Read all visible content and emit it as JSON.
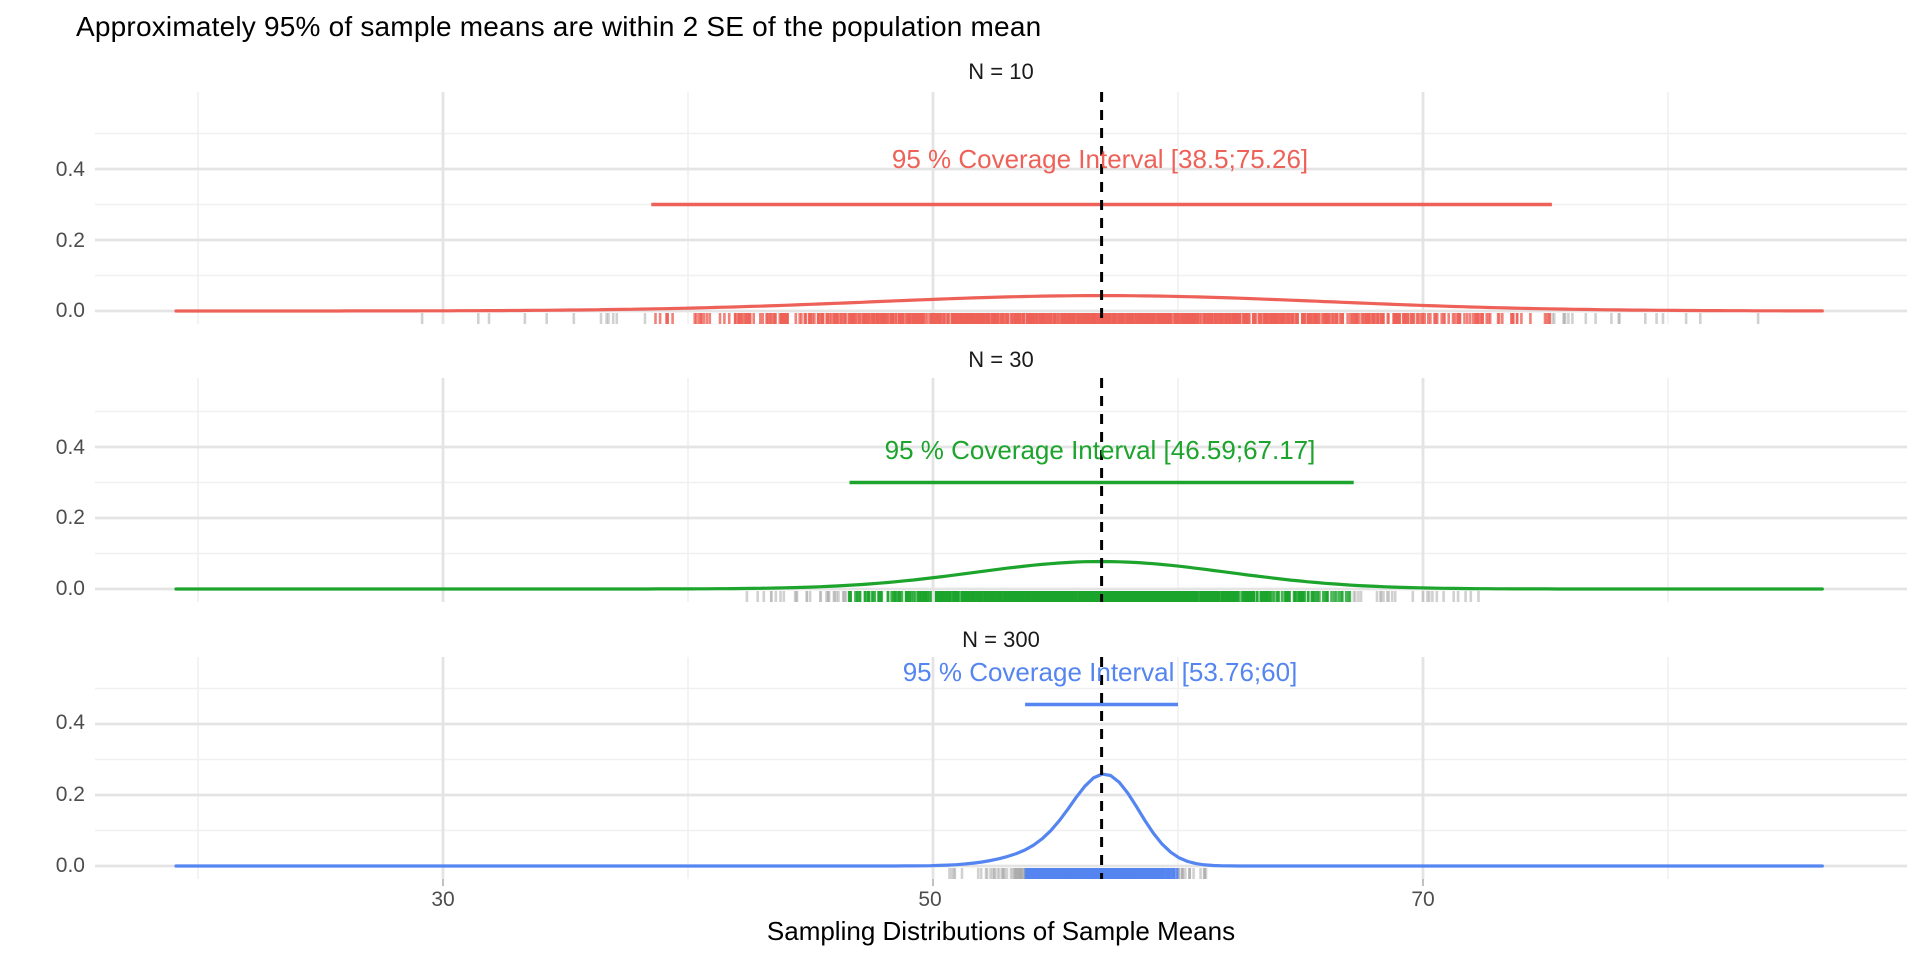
{
  "page": {
    "title": "Approximately 95% of sample means are within 2 SE of the population mean",
    "x_axis_title": "Sampling Distributions of Sample Means"
  },
  "chart_data": {
    "type": "line",
    "subtype": "faceted-density-with-rug",
    "description": "Three stacked density plots of simulated sample means with rug marks, a 95% coverage interval segment per facet, and a dashed vertical line at the population mean",
    "population_mean": 56.88,
    "x_ticks": [
      30,
      50,
      70
    ],
    "x_minor_ticks": [
      20,
      40,
      60,
      80
    ],
    "x_data_range": [
      19.1,
      86.3
    ],
    "y_ticks": [
      0.0,
      0.2,
      0.4
    ],
    "y_minor_ticks": [
      0.1,
      0.3,
      0.5
    ],
    "y_tick_labels": [
      "0.4",
      "0.2",
      "0.0"
    ],
    "grid": true,
    "legend": "none",
    "panels": [
      {
        "label": "N = 10",
        "n": 10,
        "color": "#ee6158",
        "annotation": "95 % Coverage Interval [38.5;75.26]",
        "interval_low": 38.5,
        "interval_high": 75.26,
        "se": 9.19,
        "peak_density": 0.043,
        "segment_height": 0.3,
        "annotation_height": 0.43,
        "rug_count": 1000,
        "components": [
          {
            "w": 1.0,
            "mu": 56.88,
            "sd": 9.19
          }
        ]
      },
      {
        "label": "N = 30",
        "n": 30,
        "color": "#1ca42c",
        "annotation": "95 % Coverage Interval [46.59;67.17]",
        "interval_low": 46.59,
        "interval_high": 67.17,
        "se": 5.15,
        "peak_density": 0.078,
        "segment_height": 0.3,
        "annotation_height": 0.39,
        "rug_count": 1000,
        "components": [
          {
            "w": 1.0,
            "mu": 56.88,
            "sd": 5.15
          }
        ]
      },
      {
        "label": "N = 300",
        "n": 300,
        "color": "#5585f0",
        "annotation": "95 % Coverage Interval [53.76;60]",
        "interval_low": 53.76,
        "interval_high": 60,
        "se": 1.56,
        "peak_density": 0.26,
        "segment_height": 0.455,
        "annotation_height": 0.545,
        "rug_count": 1000,
        "components": [
          {
            "w": 0.78,
            "mu": 57.1,
            "sd": 1.35
          },
          {
            "w": 0.22,
            "mu": 55.2,
            "sd": 1.9
          }
        ]
      }
    ],
    "style": {
      "grid_major": "#e4e4e4",
      "grid_minor": "#f0f0f0",
      "rug_gray": "#ababab",
      "vline_color": "#000000",
      "axis_tick_color": "#c0c0c0",
      "axis_text_color": "#4d4d4d"
    }
  }
}
